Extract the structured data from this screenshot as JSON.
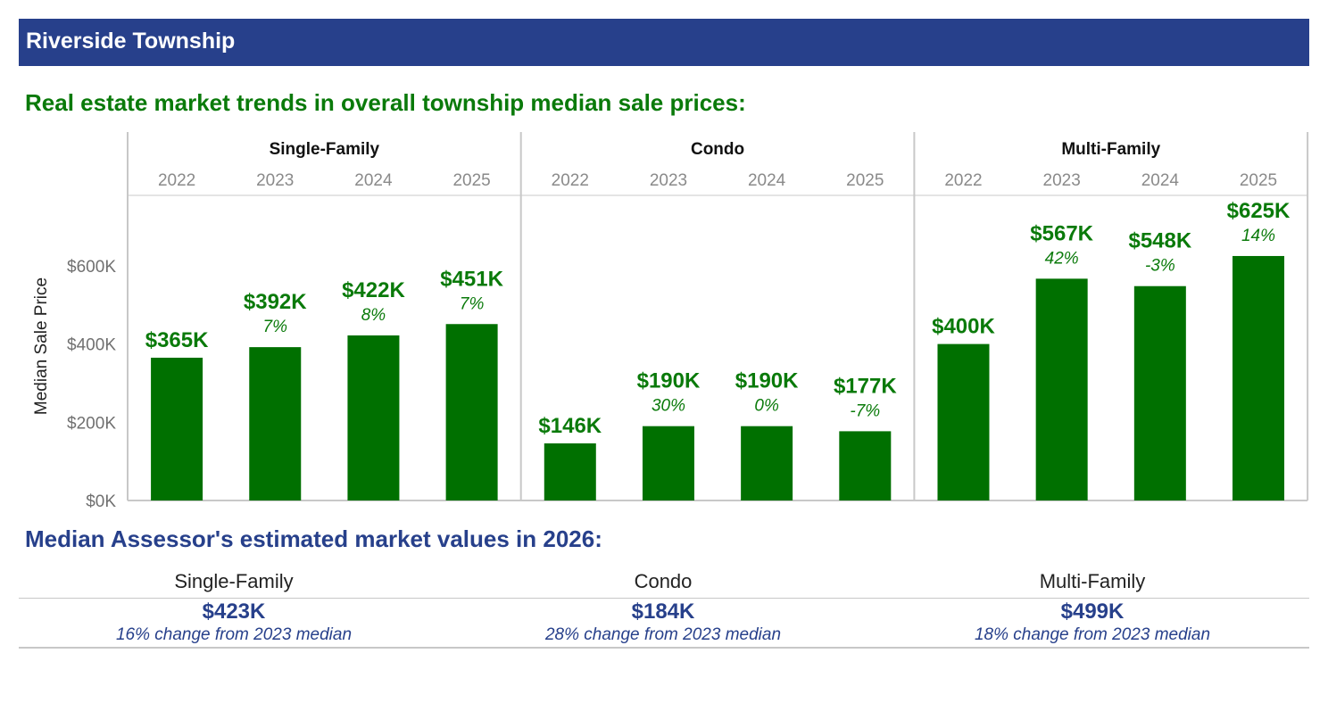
{
  "header": {
    "title": "Riverside Township"
  },
  "trends_title": "Real estate market trends in overall township median sale prices:",
  "assessor_title": "Median Assessor's estimated market values in 2026:",
  "colors": {
    "banner": "#27408b",
    "bar": "#007000",
    "trend_text": "#0a7a0a",
    "assessor_text": "#27408b"
  },
  "chart_data": {
    "type": "bar",
    "ylabel": "Median Sale Price",
    "ylim": [
      0,
      780
    ],
    "yticks": [
      0,
      200,
      400,
      600
    ],
    "ytick_labels": [
      "$0K",
      "$200K",
      "$400K",
      "$600K"
    ],
    "groups": [
      {
        "name": "Single-Family",
        "years": [
          "2022",
          "2023",
          "2024",
          "2025"
        ],
        "values": [
          365,
          392,
          422,
          451
        ],
        "value_labels": [
          "$365K",
          "$392K",
          "$422K",
          "$451K"
        ],
        "changes": [
          "",
          "7%",
          "8%",
          "7%"
        ]
      },
      {
        "name": "Condo",
        "years": [
          "2022",
          "2023",
          "2024",
          "2025"
        ],
        "values": [
          146,
          190,
          190,
          177
        ],
        "value_labels": [
          "$146K",
          "$190K",
          "$190K",
          "$177K"
        ],
        "changes": [
          "",
          "30%",
          "0%",
          "-7%"
        ]
      },
      {
        "name": "Multi-Family",
        "years": [
          "2022",
          "2023",
          "2024",
          "2025"
        ],
        "values": [
          400,
          567,
          548,
          625
        ],
        "value_labels": [
          "$400K",
          "$567K",
          "$548K",
          "$625K"
        ],
        "changes": [
          "",
          "42%",
          "-3%",
          "14%"
        ]
      }
    ]
  },
  "assessor": {
    "columns": [
      {
        "name": "Single-Family",
        "value": "$423K",
        "change": "16% change from 2023 median"
      },
      {
        "name": "Condo",
        "value": "$184K",
        "change": "28% change from 2023 median"
      },
      {
        "name": "Multi-Family",
        "value": "$499K",
        "change": "18% change from 2023 median"
      }
    ]
  }
}
